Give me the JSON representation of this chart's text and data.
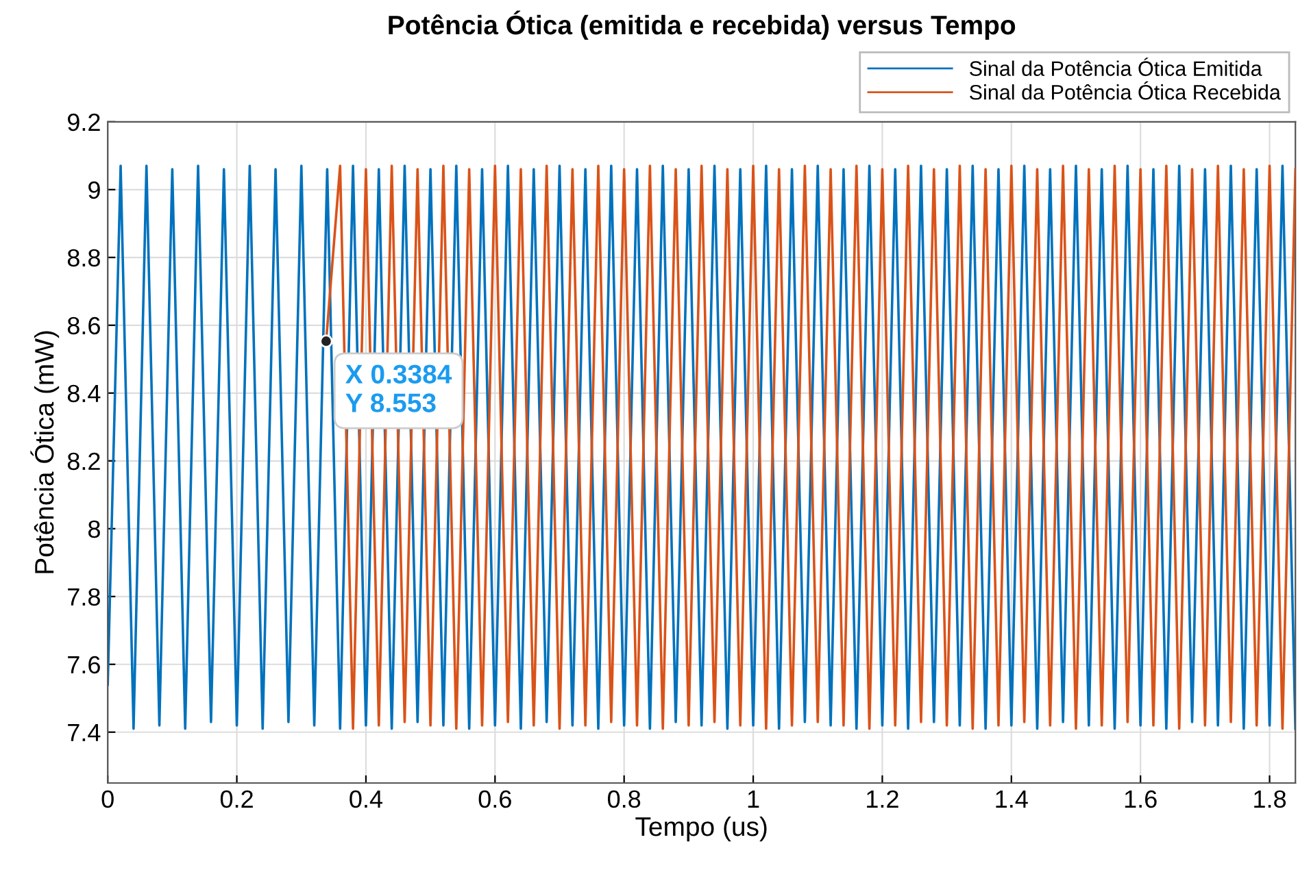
{
  "chart_data": {
    "type": "line",
    "title": "Potência Ótica (emitida e recebida) versus Tempo",
    "xlabel": "Tempo (us)",
    "ylabel": "Potência Ótica (mW)",
    "xlim": [
      0,
      1.84
    ],
    "xticks": [
      0,
      0.2,
      0.4,
      0.6,
      0.8,
      1,
      1.2,
      1.4,
      1.6,
      1.8
    ],
    "ylim": [
      7.25,
      9.2
    ],
    "yticks": [
      7.4,
      7.6,
      7.8,
      8,
      8.2,
      8.4,
      8.6,
      8.8,
      9,
      9.2
    ],
    "grid": true,
    "legend": "top right",
    "marker": "none",
    "line_style": "solid",
    "series": [
      {
        "name": "Sinal da Potência Ótica Emitida",
        "color": "#0072bd",
        "x": [
          0,
          0.02,
          0.04,
          0.06,
          0.08,
          0.1,
          0.12,
          0.14,
          0.16,
          0.18,
          0.2,
          0.22,
          0.24,
          0.26,
          0.28,
          0.3,
          0.32,
          0.34,
          0.36,
          0.38,
          0.4,
          0.42,
          0.44,
          0.46,
          0.48,
          0.5,
          0.52,
          0.54,
          0.56,
          0.58,
          0.6,
          0.62,
          0.64,
          0.66,
          0.68,
          0.7,
          0.72,
          0.74,
          0.76,
          0.78,
          0.8,
          0.82,
          0.84,
          0.86,
          0.88,
          0.9,
          0.92,
          0.94,
          0.96,
          0.98,
          1,
          1.02,
          1.04,
          1.06,
          1.08,
          1.1,
          1.12,
          1.14,
          1.16,
          1.18,
          1.2,
          1.22,
          1.24,
          1.26,
          1.28,
          1.3,
          1.32,
          1.34,
          1.36,
          1.38,
          1.4,
          1.42,
          1.44,
          1.46,
          1.48,
          1.5,
          1.52,
          1.54,
          1.56,
          1.58,
          1.6,
          1.62,
          1.64,
          1.66,
          1.68,
          1.7,
          1.72,
          1.74,
          1.76,
          1.78,
          1.8,
          1.82,
          1.84
        ],
        "values": [
          7.54,
          9.07,
          7.41,
          9.07,
          7.42,
          9.06,
          7.41,
          9.07,
          7.43,
          9.06,
          7.42,
          9.07,
          7.41,
          9.06,
          7.43,
          9.07,
          7.42,
          9.06,
          7.41,
          9.07,
          7.42,
          9.06,
          7.41,
          9.07,
          7.43,
          9.06,
          7.42,
          9.07,
          7.41,
          9.06,
          7.42,
          9.07,
          7.41,
          9.06,
          7.43,
          9.07,
          7.42,
          9.06,
          7.41,
          9.07,
          7.42,
          9.06,
          7.41,
          9.07,
          7.43,
          9.06,
          7.42,
          9.07,
          7.41,
          9.06,
          7.42,
          9.07,
          7.41,
          9.06,
          7.43,
          9.07,
          7.42,
          9.06,
          7.41,
          9.07,
          7.42,
          9.06,
          7.41,
          9.07,
          7.43,
          9.06,
          7.42,
          9.07,
          7.41,
          9.06,
          7.42,
          9.07,
          7.41,
          9.06,
          7.43,
          9.07,
          7.42,
          9.06,
          7.41,
          9.07,
          7.42,
          9.06,
          7.41,
          9.07,
          7.43,
          9.06,
          7.42,
          9.07,
          7.41,
          9.06,
          7.42,
          9.07,
          7.41
        ]
      },
      {
        "name": "Sinal da Potência Ótica Recebida",
        "color": "#d95319",
        "x": [
          0.3384,
          0.36,
          0.38,
          0.4,
          0.42,
          0.44,
          0.46,
          0.48,
          0.5,
          0.52,
          0.54,
          0.56,
          0.58,
          0.6,
          0.62,
          0.64,
          0.66,
          0.68,
          0.7,
          0.72,
          0.74,
          0.76,
          0.78,
          0.8,
          0.82,
          0.84,
          0.86,
          0.88,
          0.9,
          0.92,
          0.94,
          0.96,
          0.98,
          1,
          1.02,
          1.04,
          1.06,
          1.08,
          1.1,
          1.12,
          1.14,
          1.16,
          1.18,
          1.2,
          1.22,
          1.24,
          1.26,
          1.28,
          1.3,
          1.32,
          1.34,
          1.36,
          1.38,
          1.4,
          1.42,
          1.44,
          1.46,
          1.48,
          1.5,
          1.52,
          1.54,
          1.56,
          1.58,
          1.6,
          1.62,
          1.64,
          1.66,
          1.68,
          1.7,
          1.72,
          1.74,
          1.76,
          1.78,
          1.8,
          1.82,
          1.84
        ],
        "values": [
          8.553,
          9.07,
          7.41,
          9.06,
          7.42,
          9.07,
          7.43,
          9.06,
          7.42,
          9.07,
          7.41,
          9.06,
          7.42,
          9.07,
          7.43,
          9.06,
          7.42,
          9.07,
          7.41,
          9.06,
          7.42,
          9.07,
          7.43,
          9.06,
          7.42,
          9.07,
          7.41,
          9.06,
          7.42,
          9.07,
          7.43,
          9.06,
          7.42,
          9.07,
          7.41,
          9.06,
          7.42,
          9.07,
          7.43,
          9.06,
          7.42,
          9.07,
          7.41,
          9.06,
          7.42,
          9.07,
          7.43,
          9.06,
          7.42,
          9.07,
          7.41,
          9.06,
          7.42,
          9.07,
          7.43,
          9.06,
          7.42,
          9.07,
          7.41,
          9.06,
          7.42,
          9.07,
          7.43,
          9.06,
          7.42,
          9.07,
          7.41,
          9.06,
          7.42,
          9.07,
          7.43,
          9.06,
          7.42,
          9.07,
          7.41,
          9.06
        ]
      }
    ],
    "annotations": [
      {
        "text": "X 0.3384\nY 8.553",
        "x": 0.3384,
        "y": 8.553
      }
    ]
  }
}
